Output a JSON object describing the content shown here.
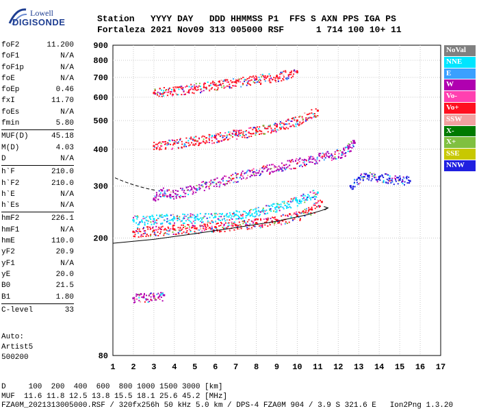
{
  "logo": {
    "line1": "Lowell",
    "line2": "DIGISONDE"
  },
  "header": {
    "line1": "Station   YYYY DAY   DDD HHMMSS P1  FFS S AXN PPS IGA PS",
    "line2": "Fortaleza 2021 Nov09 313 005000 RSF      1 714 100 10+ 11"
  },
  "param_groups": [
    [
      {
        "label": "foF2",
        "value": "11.200"
      },
      {
        "label": "foF1",
        "value": "N/A"
      },
      {
        "label": "foF1p",
        "value": "N/A"
      },
      {
        "label": "foE",
        "value": "N/A"
      },
      {
        "label": "foEp",
        "value": "0.46"
      },
      {
        "label": "fxI",
        "value": "11.70"
      },
      {
        "label": "foEs",
        "value": "N/A"
      },
      {
        "label": "fmin",
        "value": "5.80"
      }
    ],
    [
      {
        "label": "MUF(D)",
        "value": "45.18"
      },
      {
        "label": "M(D)",
        "value": "4.03"
      },
      {
        "label": "D",
        "value": "N/A"
      }
    ],
    [
      {
        "label": "h`F",
        "value": "210.0"
      },
      {
        "label": "h`F2",
        "value": "210.0"
      },
      {
        "label": "h`E",
        "value": "N/A"
      },
      {
        "label": "h`Es",
        "value": "N/A"
      }
    ],
    [
      {
        "label": "hmF2",
        "value": "226.1"
      },
      {
        "label": "hmF1",
        "value": "N/A"
      },
      {
        "label": "hmE",
        "value": "110.0"
      },
      {
        "label": "yF2",
        "value": "20.9"
      },
      {
        "label": "yF1",
        "value": "N/A"
      },
      {
        "label": "yE",
        "value": "20.0"
      },
      {
        "label": "B0",
        "value": "21.5"
      },
      {
        "label": "B1",
        "value": "1.80"
      }
    ],
    [
      {
        "label": "C-level",
        "value": "33"
      }
    ]
  ],
  "auto": {
    "line1": "Auto:",
    "line2": "Artist5",
    "line3": "500200"
  },
  "footer": {
    "line1": "D     100  200  400  600  800 1000 1500 3000 [km]",
    "line2": "MUF  11.6 11.8 12.5 13.8 15.5 18.1 25.6 45.2 [MHz]",
    "line3": "FZA0M_2021313005000.RSF / 320fx256h 50 kHz 5.0 km / DPS-4 FZA0M 904 / 3.9 S 321.6 E   Ion2Png 1.3.20"
  },
  "legend": [
    {
      "label": "NoVal",
      "color": "#808080"
    },
    {
      "label": "NNE",
      "color": "#00e5ff"
    },
    {
      "label": "E",
      "color": "#3aa0ff"
    },
    {
      "label": "W",
      "color": "#b000b0"
    },
    {
      "label": "Vo-",
      "color": "#ff40b0"
    },
    {
      "label": "Vo+",
      "color": "#ff1020"
    },
    {
      "label": "SSW",
      "color": "#f2a0a0"
    },
    {
      "label": "X-",
      "color": "#007a00"
    },
    {
      "label": "X+",
      "color": "#80c040"
    },
    {
      "label": "SSE",
      "color": "#c8c800"
    },
    {
      "label": "NNW",
      "color": "#2020e0"
    }
  ],
  "chart_data": {
    "type": "scatter",
    "title": "",
    "xlabel": "",
    "ylabel": "",
    "x_ticks": [
      1,
      2,
      3,
      4,
      5,
      6,
      7,
      8,
      9,
      10,
      11,
      12,
      13,
      14,
      15,
      16,
      17
    ],
    "y_ticks": [
      80,
      200,
      300,
      400,
      500,
      600,
      700,
      800,
      900
    ],
    "y_scale": "log",
    "xlim": [
      1,
      17
    ],
    "ylim": [
      80,
      900
    ],
    "grid": true,
    "legend_placement": "right",
    "traces": [
      {
        "name": "Vo+",
        "points": [
          [
            2.0,
            210
          ],
          [
            3.0,
            212
          ],
          [
            4.0,
            214
          ],
          [
            5.0,
            216
          ],
          [
            6.0,
            218
          ],
          [
            7.0,
            221
          ],
          [
            8.0,
            225
          ],
          [
            9.0,
            230
          ],
          [
            10.0,
            238
          ],
          [
            10.7,
            250
          ],
          [
            11.2,
            265
          ]
        ]
      },
      {
        "name": "NNE",
        "points": [
          [
            2.0,
            230
          ],
          [
            3.0,
            232
          ],
          [
            4.0,
            233
          ],
          [
            5.0,
            234
          ],
          [
            6.0,
            236
          ],
          [
            7.0,
            240
          ],
          [
            8.0,
            246
          ],
          [
            9.0,
            255
          ],
          [
            10.0,
            268
          ],
          [
            11.0,
            285
          ]
        ]
      },
      {
        "name": "Vo+",
        "points": [
          [
            3.0,
            410
          ],
          [
            4.0,
            418
          ],
          [
            5.0,
            428
          ],
          [
            6.0,
            438
          ],
          [
            7.0,
            450
          ],
          [
            8.0,
            462
          ],
          [
            9.0,
            478
          ],
          [
            10.0,
            500
          ],
          [
            11.0,
            540
          ]
        ]
      },
      {
        "name": "Vo+",
        "points": [
          [
            3.0,
            620
          ],
          [
            4.0,
            632
          ],
          [
            5.0,
            645
          ],
          [
            6.0,
            660
          ],
          [
            7.0,
            675
          ],
          [
            8.0,
            690
          ],
          [
            9.0,
            705
          ],
          [
            10.0,
            730
          ]
        ]
      },
      {
        "name": "W",
        "points": [
          [
            3.0,
            270
          ],
          [
            3.4,
            290
          ],
          [
            3.8,
            280
          ],
          [
            12.2,
            390
          ],
          [
            12.5,
            405
          ],
          [
            12.8,
            420
          ]
        ]
      },
      {
        "name": "NNW",
        "points": [
          [
            12.6,
            300
          ],
          [
            13.0,
            320
          ],
          [
            13.5,
            325
          ],
          [
            14.0,
            322
          ],
          [
            14.5,
            318
          ],
          [
            15.0,
            315
          ],
          [
            15.5,
            312
          ]
        ]
      },
      {
        "name": "W",
        "points": [
          [
            2.0,
            125
          ],
          [
            2.5,
            126
          ],
          [
            3.0,
            127
          ],
          [
            3.5,
            128
          ]
        ]
      }
    ],
    "profile_line": [
      [
        1.0,
        192
      ],
      [
        3.0,
        198
      ],
      [
        5.0,
        207
      ],
      [
        7.0,
        217
      ],
      [
        9.0,
        228
      ],
      [
        10.5,
        240
      ],
      [
        11.2,
        248
      ],
      [
        11.5,
        253
      ]
    ]
  }
}
